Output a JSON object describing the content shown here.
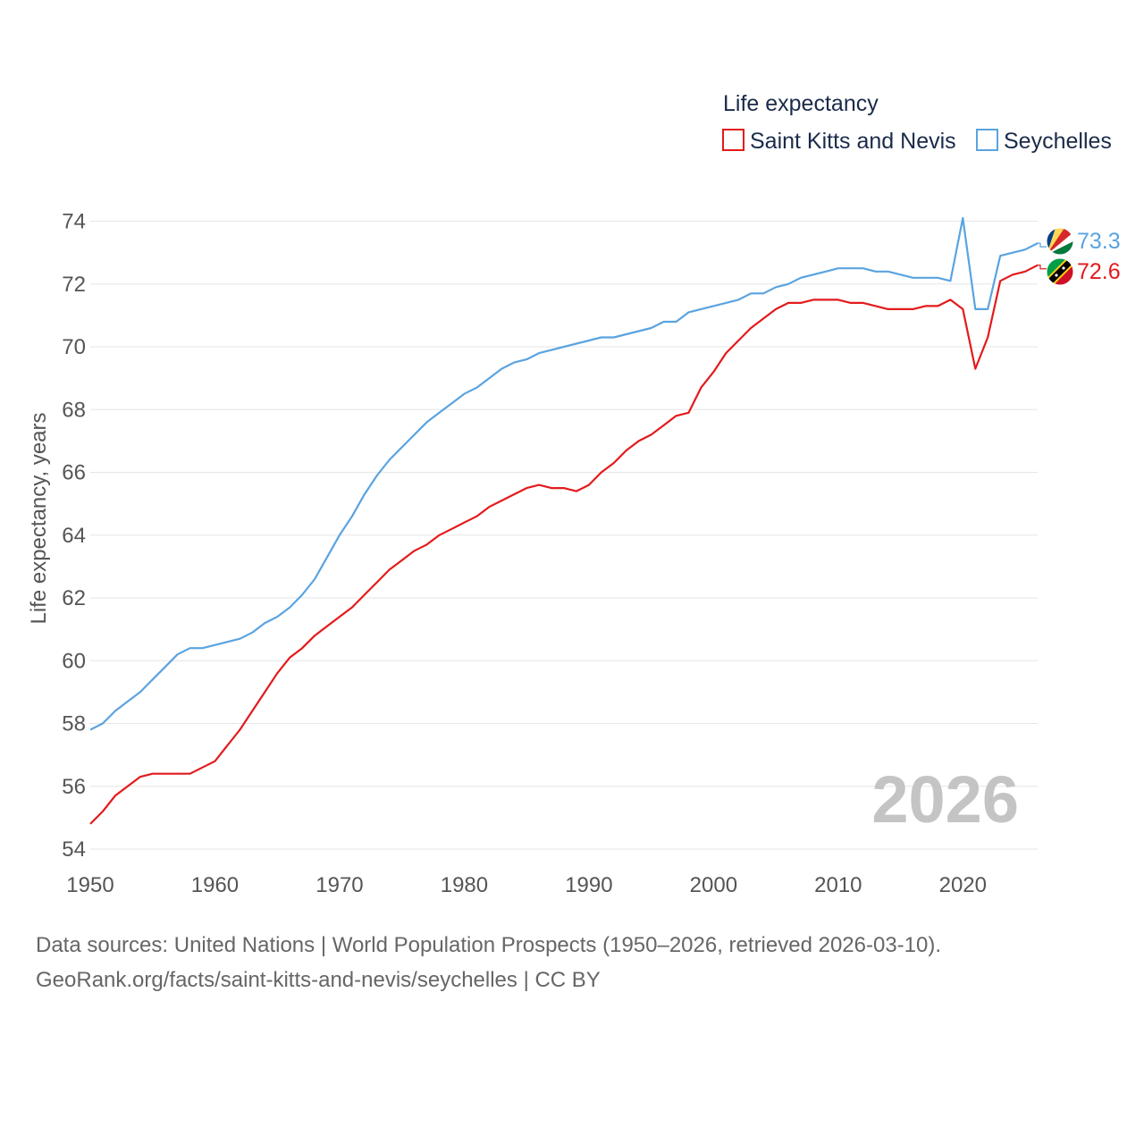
{
  "chart_data": {
    "type": "line",
    "title": "",
    "ylabel": "Life expectancy, years",
    "xlabel": "",
    "xlim": [
      1950,
      2026
    ],
    "ylim": [
      54,
      74.5
    ],
    "x_ticks": [
      1950,
      1960,
      1970,
      1980,
      1990,
      2000,
      2010,
      2020
    ],
    "y_ticks": [
      54,
      56,
      58,
      60,
      62,
      64,
      66,
      68,
      70,
      72,
      74
    ],
    "grid": true,
    "legend_title": "Life expectancy",
    "legend_position": "top-right",
    "year_label": "2026",
    "x": [
      1950,
      1951,
      1952,
      1953,
      1954,
      1955,
      1956,
      1957,
      1958,
      1959,
      1960,
      1961,
      1962,
      1963,
      1964,
      1965,
      1966,
      1967,
      1968,
      1969,
      1970,
      1971,
      1972,
      1973,
      1974,
      1975,
      1976,
      1977,
      1978,
      1979,
      1980,
      1981,
      1982,
      1983,
      1984,
      1985,
      1986,
      1987,
      1988,
      1989,
      1990,
      1991,
      1992,
      1993,
      1994,
      1995,
      1996,
      1997,
      1998,
      1999,
      2000,
      2001,
      2002,
      2003,
      2004,
      2005,
      2006,
      2007,
      2008,
      2009,
      2010,
      2011,
      2012,
      2013,
      2014,
      2015,
      2016,
      2017,
      2018,
      2019,
      2020,
      2021,
      2022,
      2023,
      2024,
      2025,
      2026
    ],
    "series": [
      {
        "name": "Saint Kitts and Nevis",
        "color": "#e31a1c",
        "end_label": "72.6",
        "values": [
          54.8,
          55.2,
          55.7,
          56.0,
          56.3,
          56.4,
          56.4,
          56.4,
          56.4,
          56.6,
          56.8,
          57.3,
          57.8,
          58.4,
          59.0,
          59.6,
          60.1,
          60.4,
          60.8,
          61.1,
          61.4,
          61.7,
          62.1,
          62.5,
          62.9,
          63.2,
          63.5,
          63.7,
          64.0,
          64.2,
          64.4,
          64.6,
          64.9,
          65.1,
          65.3,
          65.5,
          65.6,
          65.5,
          65.5,
          65.4,
          65.6,
          66.0,
          66.3,
          66.7,
          67.0,
          67.2,
          67.5,
          67.8,
          67.9,
          68.7,
          69.2,
          69.8,
          70.2,
          70.6,
          70.9,
          71.2,
          71.4,
          71.4,
          71.5,
          71.5,
          71.5,
          71.4,
          71.4,
          71.3,
          71.2,
          71.2,
          71.2,
          71.3,
          71.3,
          71.5,
          71.2,
          69.3,
          70.3,
          72.1,
          72.3,
          72.4,
          72.6
        ]
      },
      {
        "name": "Seychelles",
        "color": "#5aa3e0",
        "end_label": "73.3",
        "values": [
          57.8,
          58.0,
          58.4,
          58.7,
          59.0,
          59.4,
          59.8,
          60.2,
          60.4,
          60.4,
          60.5,
          60.6,
          60.7,
          60.9,
          61.2,
          61.4,
          61.7,
          62.1,
          62.6,
          63.3,
          64.0,
          64.6,
          65.3,
          65.9,
          66.4,
          66.8,
          67.2,
          67.6,
          67.9,
          68.2,
          68.5,
          68.7,
          69.0,
          69.3,
          69.5,
          69.6,
          69.8,
          69.9,
          70.0,
          70.1,
          70.2,
          70.3,
          70.3,
          70.4,
          70.5,
          70.6,
          70.8,
          70.8,
          71.1,
          71.2,
          71.3,
          71.4,
          71.5,
          71.7,
          71.7,
          71.9,
          72.0,
          72.2,
          72.3,
          72.4,
          72.5,
          72.5,
          72.5,
          72.4,
          72.4,
          72.3,
          72.2,
          72.2,
          72.2,
          72.1,
          74.1,
          71.2,
          71.2,
          72.9,
          73.0,
          73.1,
          73.3
        ]
      }
    ]
  },
  "source": {
    "line1": "Data sources: United Nations | World Population Prospects (1950–2026, retrieved 2026-03-10).",
    "line2": "GeoRank.org/facts/saint-kitts-and-nevis/seychelles | CC BY"
  },
  "flags": {
    "saint_kitts": "saint-kitts-and-nevis-flag-icon",
    "seychelles": "seychelles-flag-icon"
  }
}
